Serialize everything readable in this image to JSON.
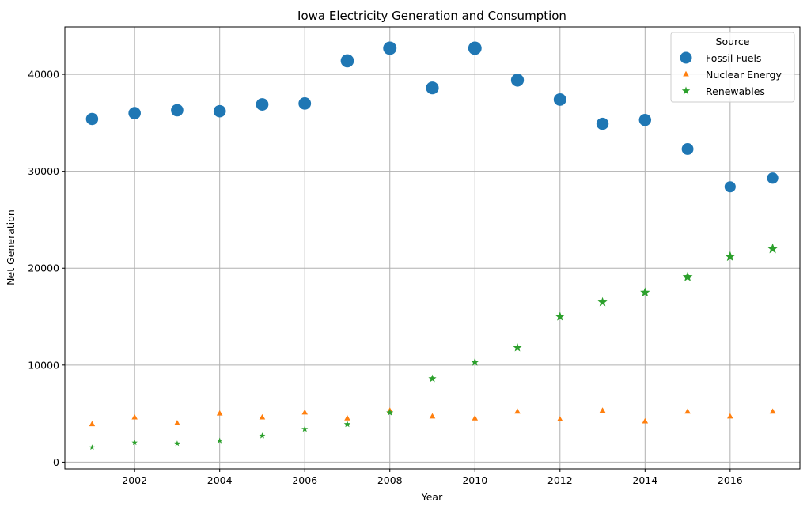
{
  "chart_data": {
    "type": "scatter",
    "title": "Iowa Electricity Generation and Consumption",
    "xlabel": "Year",
    "ylabel": "Net Generation",
    "xlim": [
      2000.36,
      2017.64
    ],
    "ylim": [
      -700,
      44900
    ],
    "xticks": [
      2002,
      2004,
      2006,
      2008,
      2010,
      2012,
      2014,
      2016
    ],
    "yticks": [
      0,
      10000,
      20000,
      30000,
      40000
    ],
    "grid": true,
    "legend": {
      "title": "Source",
      "placement": "top-right"
    },
    "x": [
      2001,
      2002,
      2003,
      2004,
      2005,
      2006,
      2007,
      2008,
      2009,
      2010,
      2011,
      2012,
      2013,
      2014,
      2015,
      2016,
      2017
    ],
    "series": [
      {
        "name": "Fossil Fuels",
        "marker": "circle",
        "color": "#1f77b4",
        "values": [
          35400,
          36000,
          36300,
          36200,
          36900,
          37000,
          41400,
          42700,
          38600,
          42700,
          39400,
          37400,
          34900,
          35300,
          32300,
          28400,
          29300
        ]
      },
      {
        "name": "Nuclear Energy",
        "marker": "triangle",
        "color": "#ff7f0e",
        "values": [
          3900,
          4600,
          4000,
          5000,
          4600,
          5100,
          4500,
          5300,
          4700,
          4500,
          5200,
          4400,
          5300,
          4200,
          5200,
          4700,
          5200
        ]
      },
      {
        "name": "Renewables",
        "marker": "star",
        "color": "#2ca02c",
        "values": [
          1500,
          2000,
          1900,
          2200,
          2700,
          3400,
          3900,
          5100,
          8600,
          10300,
          11800,
          15000,
          16500,
          17500,
          19100,
          21200,
          22000
        ]
      }
    ]
  }
}
